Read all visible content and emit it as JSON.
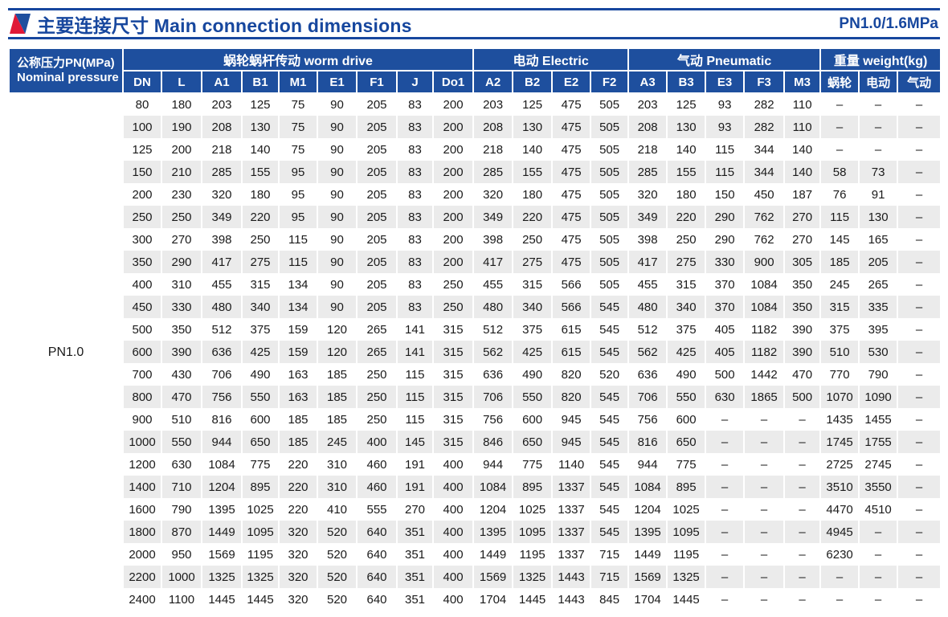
{
  "page": {
    "title": "主要连接尺寸 Main connection dimensions",
    "pressure_rating": "PN1.0/1.6MPa"
  },
  "table": {
    "pn_header": {
      "line1": "公称压力PN(MPa)",
      "line2": "Nominal pressure"
    },
    "pn_value": "PN1.0",
    "groups": [
      {
        "label": "蜗轮蜗杆传动 worm drive"
      },
      {
        "label": "电动 Electric"
      },
      {
        "label": "气动 Pneumatic"
      },
      {
        "label": "重量 weight(kg)"
      }
    ],
    "columns": [
      "DN",
      "L",
      "A1",
      "B1",
      "M1",
      "E1",
      "F1",
      "J",
      "Do1",
      "A2",
      "B2",
      "E2",
      "F2",
      "A3",
      "B3",
      "E3",
      "F3",
      "M3",
      "蜗轮",
      "电动",
      "气动"
    ],
    "rows": [
      [
        "80",
        "180",
        "203",
        "125",
        "75",
        "90",
        "205",
        "83",
        "200",
        "203",
        "125",
        "475",
        "505",
        "203",
        "125",
        "93",
        "282",
        "110",
        "–",
        "–",
        "–"
      ],
      [
        "100",
        "190",
        "208",
        "130",
        "75",
        "90",
        "205",
        "83",
        "200",
        "208",
        "130",
        "475",
        "505",
        "208",
        "130",
        "93",
        "282",
        "110",
        "–",
        "–",
        "–"
      ],
      [
        "125",
        "200",
        "218",
        "140",
        "75",
        "90",
        "205",
        "83",
        "200",
        "218",
        "140",
        "475",
        "505",
        "218",
        "140",
        "115",
        "344",
        "140",
        "–",
        "–",
        "–"
      ],
      [
        "150",
        "210",
        "285",
        "155",
        "95",
        "90",
        "205",
        "83",
        "200",
        "285",
        "155",
        "475",
        "505",
        "285",
        "155",
        "115",
        "344",
        "140",
        "58",
        "73",
        "–"
      ],
      [
        "200",
        "230",
        "320",
        "180",
        "95",
        "90",
        "205",
        "83",
        "200",
        "320",
        "180",
        "475",
        "505",
        "320",
        "180",
        "150",
        "450",
        "187",
        "76",
        "91",
        "–"
      ],
      [
        "250",
        "250",
        "349",
        "220",
        "95",
        "90",
        "205",
        "83",
        "200",
        "349",
        "220",
        "475",
        "505",
        "349",
        "220",
        "290",
        "762",
        "270",
        "115",
        "130",
        "–"
      ],
      [
        "300",
        "270",
        "398",
        "250",
        "115",
        "90",
        "205",
        "83",
        "200",
        "398",
        "250",
        "475",
        "505",
        "398",
        "250",
        "290",
        "762",
        "270",
        "145",
        "165",
        "–"
      ],
      [
        "350",
        "290",
        "417",
        "275",
        "115",
        "90",
        "205",
        "83",
        "200",
        "417",
        "275",
        "475",
        "505",
        "417",
        "275",
        "330",
        "900",
        "305",
        "185",
        "205",
        "–"
      ],
      [
        "400",
        "310",
        "455",
        "315",
        "134",
        "90",
        "205",
        "83",
        "250",
        "455",
        "315",
        "566",
        "505",
        "455",
        "315",
        "370",
        "1084",
        "350",
        "245",
        "265",
        "–"
      ],
      [
        "450",
        "330",
        "480",
        "340",
        "134",
        "90",
        "205",
        "83",
        "250",
        "480",
        "340",
        "566",
        "545",
        "480",
        "340",
        "370",
        "1084",
        "350",
        "315",
        "335",
        "–"
      ],
      [
        "500",
        "350",
        "512",
        "375",
        "159",
        "120",
        "265",
        "141",
        "315",
        "512",
        "375",
        "615",
        "545",
        "512",
        "375",
        "405",
        "1182",
        "390",
        "375",
        "395",
        "–"
      ],
      [
        "600",
        "390",
        "636",
        "425",
        "159",
        "120",
        "265",
        "141",
        "315",
        "562",
        "425",
        "615",
        "545",
        "562",
        "425",
        "405",
        "1182",
        "390",
        "510",
        "530",
        "–"
      ],
      [
        "700",
        "430",
        "706",
        "490",
        "163",
        "185",
        "250",
        "115",
        "315",
        "636",
        "490",
        "820",
        "520",
        "636",
        "490",
        "500",
        "1442",
        "470",
        "770",
        "790",
        "–"
      ],
      [
        "800",
        "470",
        "756",
        "550",
        "163",
        "185",
        "250",
        "115",
        "315",
        "706",
        "550",
        "820",
        "545",
        "706",
        "550",
        "630",
        "1865",
        "500",
        "1070",
        "1090",
        "–"
      ],
      [
        "900",
        "510",
        "816",
        "600",
        "185",
        "185",
        "250",
        "115",
        "315",
        "756",
        "600",
        "945",
        "545",
        "756",
        "600",
        "–",
        "–",
        "–",
        "1435",
        "1455",
        "–"
      ],
      [
        "1000",
        "550",
        "944",
        "650",
        "185",
        "245",
        "400",
        "145",
        "315",
        "846",
        "650",
        "945",
        "545",
        "816",
        "650",
        "–",
        "–",
        "–",
        "1745",
        "1755",
        "–"
      ],
      [
        "1200",
        "630",
        "1084",
        "775",
        "220",
        "310",
        "460",
        "191",
        "400",
        "944",
        "775",
        "1140",
        "545",
        "944",
        "775",
        "–",
        "–",
        "–",
        "2725",
        "2745",
        "–"
      ],
      [
        "1400",
        "710",
        "1204",
        "895",
        "220",
        "310",
        "460",
        "191",
        "400",
        "1084",
        "895",
        "1337",
        "545",
        "1084",
        "895",
        "–",
        "–",
        "–",
        "3510",
        "3550",
        "–"
      ],
      [
        "1600",
        "790",
        "1395",
        "1025",
        "220",
        "410",
        "555",
        "270",
        "400",
        "1204",
        "1025",
        "1337",
        "545",
        "1204",
        "1025",
        "–",
        "–",
        "–",
        "4470",
        "4510",
        "–"
      ],
      [
        "1800",
        "870",
        "1449",
        "1095",
        "320",
        "520",
        "640",
        "351",
        "400",
        "1395",
        "1095",
        "1337",
        "545",
        "1395",
        "1095",
        "–",
        "–",
        "–",
        "4945",
        "–",
        "–"
      ],
      [
        "2000",
        "950",
        "1569",
        "1195",
        "320",
        "520",
        "640",
        "351",
        "400",
        "1449",
        "1195",
        "1337",
        "715",
        "1449",
        "1195",
        "–",
        "–",
        "–",
        "6230",
        "–",
        "–"
      ],
      [
        "2200",
        "1000",
        "1325",
        "1325",
        "320",
        "520",
        "640",
        "351",
        "400",
        "1569",
        "1325",
        "1443",
        "715",
        "1569",
        "1325",
        "–",
        "–",
        "–",
        "–",
        "–",
        "–"
      ],
      [
        "2400",
        "1100",
        "1445",
        "1445",
        "320",
        "520",
        "640",
        "351",
        "400",
        "1704",
        "1445",
        "1443",
        "845",
        "1704",
        "1445",
        "–",
        "–",
        "–",
        "–",
        "–",
        "–"
      ]
    ],
    "colors": {
      "header_blue": "#1e4f9e",
      "title_blue": "#17479e",
      "accent_red": "#e01937",
      "stripe_gray": "#ebebeb"
    }
  }
}
